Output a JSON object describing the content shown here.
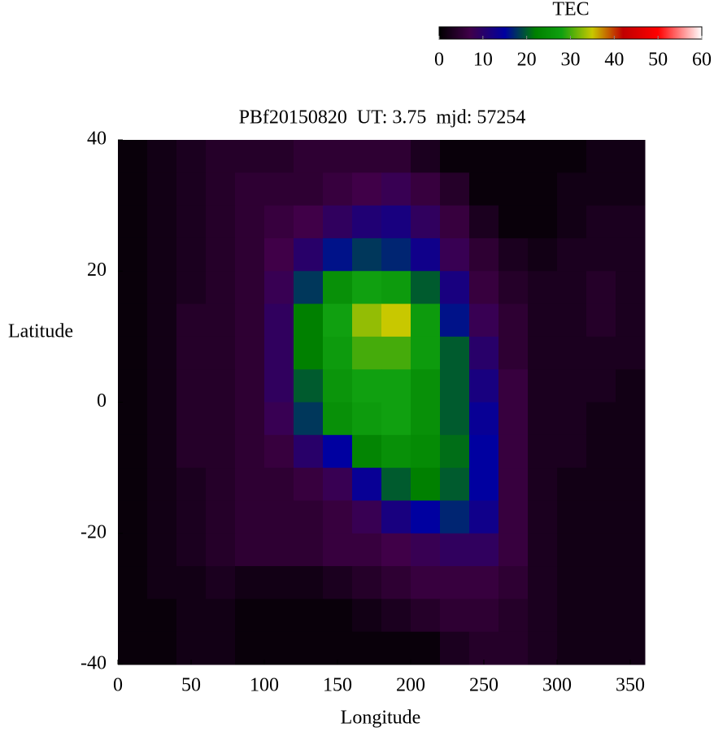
{
  "chart_data": {
    "type": "heatmap",
    "title": "PBf20150820  UT: 3.75  mjd: 57254",
    "x_label": "Longitude",
    "y_label": "Latitude",
    "colorbar_label": "TEC",
    "x": [
      10,
      30,
      50,
      70,
      90,
      110,
      130,
      150,
      170,
      190,
      210,
      230,
      250,
      270,
      290,
      310,
      330,
      350
    ],
    "y": [
      37.5,
      32.5,
      27.5,
      22.5,
      17.5,
      12.5,
      7.5,
      2.5,
      -2.5,
      -7.5,
      -12.5,
      -17.5,
      -22.5,
      -27.5,
      -32.5,
      -37.5
    ],
    "values": [
      [
        1,
        2,
        3,
        4,
        4,
        4,
        5,
        5,
        5,
        5,
        3,
        1,
        1,
        1,
        1,
        1,
        2,
        2
      ],
      [
        1,
        2,
        3,
        4,
        5,
        5,
        5,
        6,
        7,
        8,
        6,
        4,
        1,
        1,
        1,
        2,
        2,
        2
      ],
      [
        1,
        2,
        3,
        4,
        5,
        6,
        7,
        9,
        11,
        12,
        9,
        6,
        3,
        1,
        1,
        2,
        3,
        3
      ],
      [
        1,
        2,
        3,
        4,
        5,
        7,
        10,
        16,
        18,
        17,
        13,
        8,
        5,
        3,
        2,
        3,
        3,
        3
      ],
      [
        1,
        2,
        3,
        4,
        5,
        8,
        18,
        25,
        28,
        27,
        20,
        12,
        6,
        4,
        3,
        3,
        4,
        3
      ],
      [
        1,
        2,
        4,
        4,
        5,
        9,
        22,
        28,
        33,
        35,
        27,
        16,
        8,
        5,
        3,
        3,
        4,
        3
      ],
      [
        1,
        2,
        4,
        4,
        5,
        9,
        22,
        27,
        30,
        30,
        27,
        20,
        10,
        5,
        3,
        3,
        3,
        3
      ],
      [
        1,
        2,
        4,
        4,
        5,
        9,
        20,
        26,
        28,
        28,
        25,
        20,
        12,
        6,
        3,
        3,
        3,
        2
      ],
      [
        1,
        2,
        4,
        4,
        5,
        8,
        18,
        25,
        27,
        28,
        25,
        20,
        14,
        6,
        3,
        3,
        2,
        2
      ],
      [
        1,
        2,
        4,
        4,
        5,
        6,
        10,
        15,
        23,
        25,
        24,
        21,
        15,
        6,
        3,
        3,
        2,
        2
      ],
      [
        1,
        2,
        3,
        4,
        5,
        5,
        6,
        8,
        14,
        20,
        22,
        20,
        15,
        6,
        3,
        2,
        2,
        2
      ],
      [
        1,
        2,
        3,
        4,
        5,
        5,
        5,
        6,
        8,
        12,
        15,
        17,
        13,
        6,
        3,
        2,
        2,
        2
      ],
      [
        1,
        2,
        3,
        4,
        5,
        5,
        5,
        6,
        6,
        7,
        8,
        9,
        9,
        6,
        3,
        2,
        2,
        2
      ],
      [
        1,
        2,
        2,
        3,
        2,
        2,
        2,
        3,
        4,
        5,
        6,
        6,
        6,
        5,
        3,
        2,
        2,
        2
      ],
      [
        1,
        1,
        2,
        2,
        1,
        1,
        1,
        1,
        2,
        3,
        4,
        5,
        5,
        4,
        3,
        2,
        2,
        2
      ],
      [
        1,
        1,
        2,
        2,
        1,
        1,
        1,
        1,
        1,
        1,
        1,
        3,
        4,
        4,
        3,
        2,
        2,
        2
      ]
    ],
    "xlim": [
      0,
      360
    ],
    "xticks": [
      0,
      50,
      100,
      150,
      200,
      250,
      300,
      350
    ],
    "ylim": [
      -40,
      40
    ],
    "yticks": [
      -40,
      -20,
      0,
      20,
      40
    ],
    "clim": [
      0,
      60
    ],
    "cticks": [
      0,
      10,
      20,
      30,
      40,
      50,
      60
    ],
    "colorscale": [
      [
        0,
        "#000000"
      ],
      [
        7,
        "#400048"
      ],
      [
        15,
        "#0000a0"
      ],
      [
        22,
        "#008000"
      ],
      [
        28,
        "#10a010"
      ],
      [
        35,
        "#c8c800"
      ],
      [
        42,
        "#c00000"
      ],
      [
        50,
        "#ff0000"
      ],
      [
        60,
        "#ffffff"
      ]
    ]
  }
}
